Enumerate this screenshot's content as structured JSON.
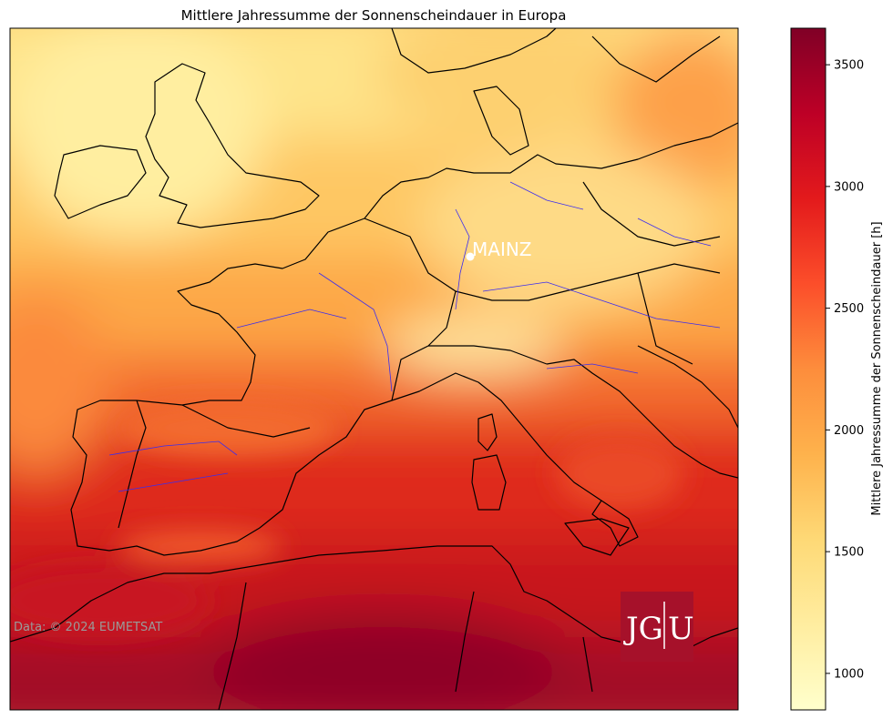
{
  "title": "Mittlere Jahressumme der Sonnenscheindauer in Europa",
  "colorbar": {
    "label": "Mittlere Jahressumme der Sonnenscheindauer [h]",
    "min": 850,
    "max": 3650,
    "ticks": [
      "1000",
      "1500",
      "2000",
      "2500",
      "3000",
      "3500"
    ],
    "colors": [
      "#ffffcc",
      "#ffeda0",
      "#fed976",
      "#feb24c",
      "#fd8d3c",
      "#fc4e2a",
      "#e31a1c",
      "#bd0026",
      "#800026"
    ]
  },
  "map": {
    "city": "MAINZ",
    "credit": "Data: © 2024 EUMETSAT",
    "logo": {
      "left": "JG",
      "right": "U",
      "color": "#a6112a"
    }
  }
}
